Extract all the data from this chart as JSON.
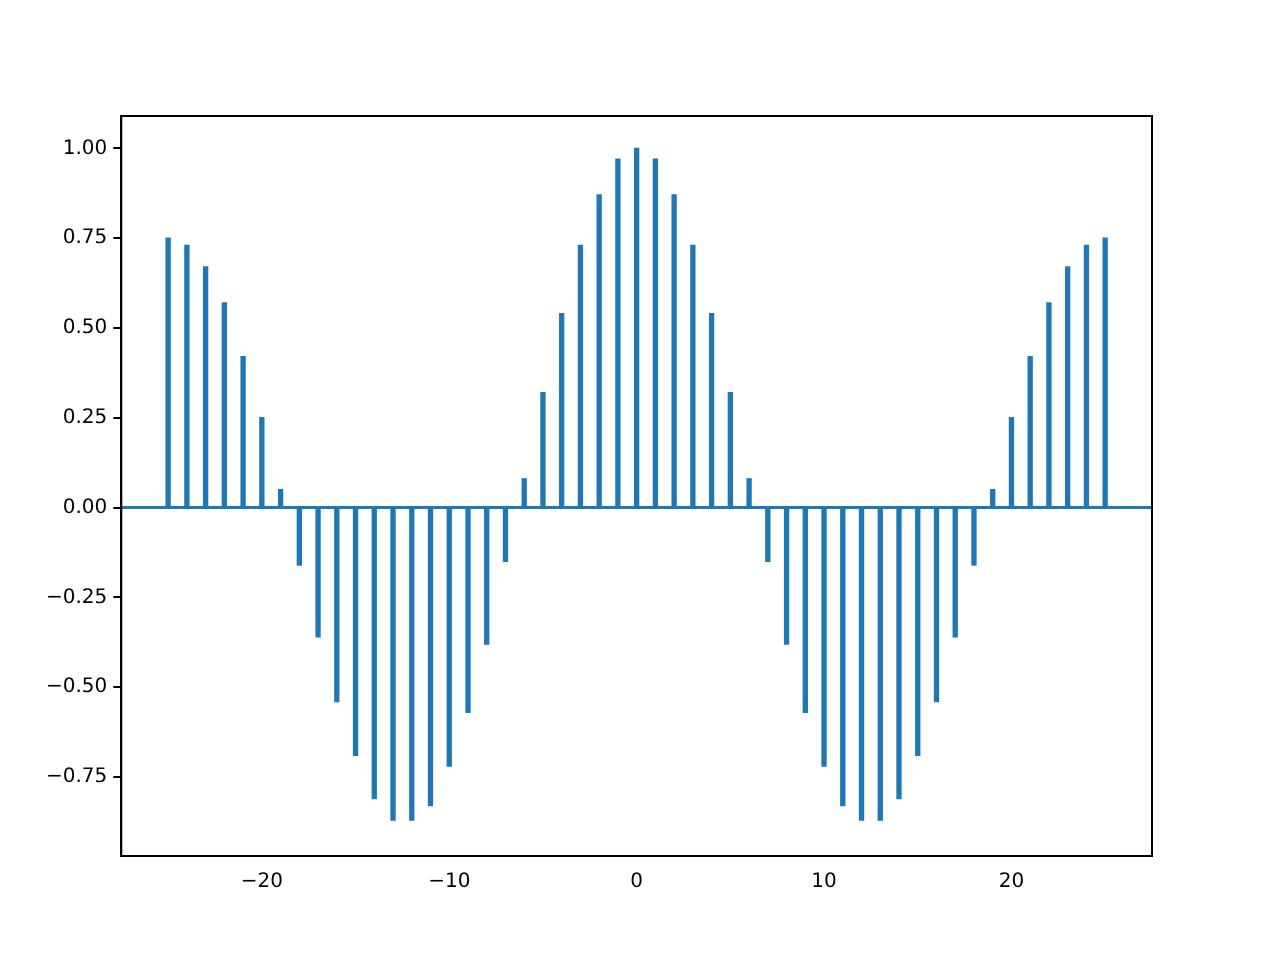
{
  "chart_data": {
    "type": "bar",
    "x": [
      -25,
      -24,
      -23,
      -22,
      -21,
      -20,
      -19,
      -18,
      -17,
      -16,
      -15,
      -14,
      -13,
      -12,
      -11,
      -10,
      -9,
      -8,
      -7,
      -6,
      -5,
      -4,
      -3,
      -2,
      -1,
      0,
      1,
      2,
      3,
      4,
      5,
      6,
      7,
      8,
      9,
      10,
      11,
      12,
      13,
      14,
      15,
      16,
      17,
      18,
      19,
      20,
      21,
      22,
      23,
      24,
      25
    ],
    "values": [
      0.75,
      0.73,
      0.67,
      0.57,
      0.42,
      0.25,
      0.05,
      -0.16,
      -0.36,
      -0.54,
      -0.69,
      -0.81,
      -0.87,
      -0.87,
      -0.83,
      -0.72,
      -0.57,
      -0.38,
      -0.15,
      0.08,
      0.32,
      0.54,
      0.73,
      0.87,
      0.97,
      1.0,
      0.97,
      0.87,
      0.73,
      0.54,
      0.32,
      0.08,
      -0.15,
      -0.38,
      -0.57,
      -0.72,
      -0.83,
      -0.87,
      -0.87,
      -0.81,
      -0.69,
      -0.54,
      -0.36,
      -0.16,
      0.05,
      0.25,
      0.42,
      0.57,
      0.67,
      0.73,
      0.75
    ],
    "color": "#1f77b4",
    "xlim": [
      -27.5,
      27.5
    ],
    "xticks": [
      {
        "value": -20,
        "label": "−20"
      },
      {
        "value": -10,
        "label": "−10"
      },
      0,
      10,
      20
    ],
    "ylim": [
      -0.97,
      1.09
    ],
    "yticks": [
      {
        "value": -0.75,
        "label": "−0.75"
      },
      {
        "value": -0.5,
        "label": "−0.50"
      },
      {
        "value": -0.25,
        "label": "−0.25"
      },
      {
        "value": 0,
        "label": "0.00"
      },
      {
        "value": 0.25,
        "label": "0.25"
      },
      {
        "value": 0.5,
        "label": "0.50"
      },
      {
        "value": 0.75,
        "label": "0.75"
      },
      {
        "value": 1,
        "label": "1.00"
      }
    ],
    "ref_lines": [
      {
        "axis": "y",
        "value": 0,
        "color": "#1f77b4"
      }
    ],
    "grid": false,
    "legend": false
  }
}
